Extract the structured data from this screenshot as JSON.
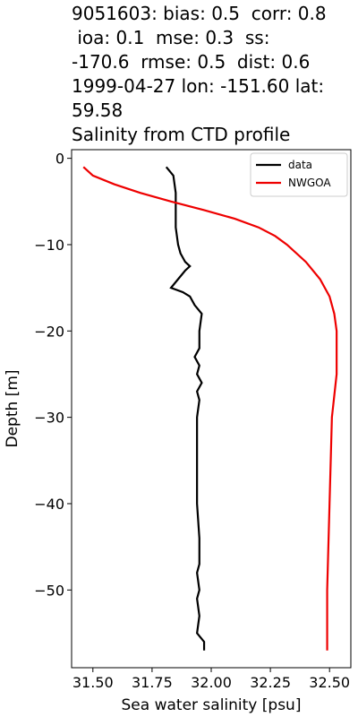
{
  "chart_data": {
    "type": "line",
    "title": [
      "9051603: bias: 0.5  corr: 0.8",
      " ioa: 0.1  mse: 0.3  ss:",
      "-170.6  rmse: 0.5  dist: 0.6",
      "1999-04-27 lon: -151.60 lat:",
      "59.58",
      "Salinity from CTD profile"
    ],
    "xlabel": "Sea water salinity [psu]",
    "ylabel": "Depth [m]",
    "xlim": [
      31.41,
      32.59
    ],
    "ylim": [
      -59.0,
      1.0
    ],
    "xticks": [
      {
        "value": 31.5,
        "label": "31.50"
      },
      {
        "value": 31.75,
        "label": "31.75"
      },
      {
        "value": 32.0,
        "label": "32.00"
      },
      {
        "value": 32.25,
        "label": "32.25"
      },
      {
        "value": 32.5,
        "label": "32.50"
      }
    ],
    "yticks": [
      0,
      {
        "value": -10,
        "label": "−10"
      },
      {
        "value": -20,
        "label": "−20"
      },
      {
        "value": -30,
        "label": "−30"
      },
      {
        "value": -40,
        "label": "−40"
      },
      {
        "value": -50,
        "label": "−50"
      }
    ],
    "legend": "upper right",
    "series": [
      {
        "name": "data",
        "color": "#000000",
        "x": [
          31.81,
          31.84,
          31.85,
          31.85,
          31.85,
          31.86,
          31.87,
          31.89,
          31.91,
          31.89,
          31.86,
          31.83,
          31.88,
          31.91,
          31.93,
          31.96,
          31.95,
          31.95,
          31.93,
          31.95,
          31.94,
          31.96,
          31.94,
          31.95,
          31.94,
          31.94,
          31.94,
          31.95,
          31.95,
          31.94,
          31.95,
          31.94,
          31.95,
          31.94,
          31.97,
          31.97
        ],
        "values": [
          -1,
          -2,
          -4,
          -6,
          -8,
          -10,
          -11,
          -12,
          -12.5,
          -13,
          -14,
          -15,
          -15.5,
          -16,
          -17,
          -18,
          -20,
          -22,
          -23,
          -24,
          -25,
          -26,
          -27,
          -28,
          -30,
          -35,
          -40,
          -44,
          -47,
          -48,
          -50,
          -51,
          -53,
          -55,
          -56,
          -57
        ]
      },
      {
        "name": "NWGOA",
        "color": "#ee0000",
        "x": [
          31.46,
          31.5,
          31.59,
          31.7,
          31.83,
          31.97,
          32.1,
          32.2,
          32.27,
          32.32,
          32.4,
          32.46,
          32.5,
          32.52,
          32.53,
          32.53,
          32.51,
          32.5,
          32.49,
          32.49
        ],
        "values": [
          -1,
          -2,
          -3,
          -4,
          -5,
          -6,
          -7,
          -8,
          -9,
          -10,
          -12,
          -14,
          -16,
          -18,
          -20,
          -25,
          -30,
          -40,
          -50,
          -57
        ]
      }
    ]
  }
}
